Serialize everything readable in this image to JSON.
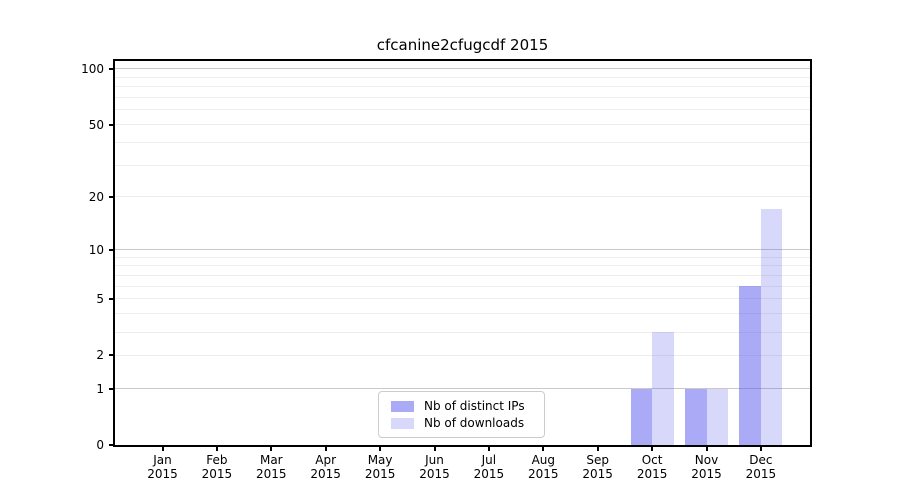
{
  "title": "cfcanine2cfugcdf 2015",
  "chart_data": {
    "type": "bar",
    "categories": [
      "Jan",
      "Feb",
      "Mar",
      "Apr",
      "May",
      "Jun",
      "Jul",
      "Aug",
      "Sep",
      "Oct",
      "Nov",
      "Dec"
    ],
    "category_year": "2015",
    "series": [
      {
        "name": "Nb of distinct IPs",
        "color": "rgba(77,77,236,0.48)",
        "values": [
          0,
          0,
          0,
          0,
          0,
          0,
          0,
          0,
          0,
          1,
          1,
          6
        ]
      },
      {
        "name": "Nb of downloads",
        "color": "rgba(77,77,236,0.22)",
        "values": [
          0,
          0,
          0,
          0,
          0,
          0,
          0,
          0,
          0,
          3,
          1,
          17
        ]
      }
    ],
    "y_axis": {
      "scale": "log1p",
      "ticks": [
        0,
        1,
        2,
        5,
        10,
        20,
        50,
        100
      ],
      "major_gridlines": [
        1,
        10,
        100
      ],
      "minor_gridlines": [
        2,
        3,
        4,
        5,
        6,
        7,
        8,
        9,
        20,
        30,
        40,
        50,
        60,
        70,
        80,
        90
      ],
      "range_top": 111
    },
    "legend": {
      "position": "lower center"
    },
    "xlabel": "",
    "ylabel": ""
  },
  "colors": {
    "background": "#ffffff",
    "frame": "#000000",
    "grid_minor": "#ededed",
    "grid_major": "#c9c9c9",
    "bar_distinct_ips": "#aaaaf1",
    "bar_downloads": "#d8d8f8"
  }
}
